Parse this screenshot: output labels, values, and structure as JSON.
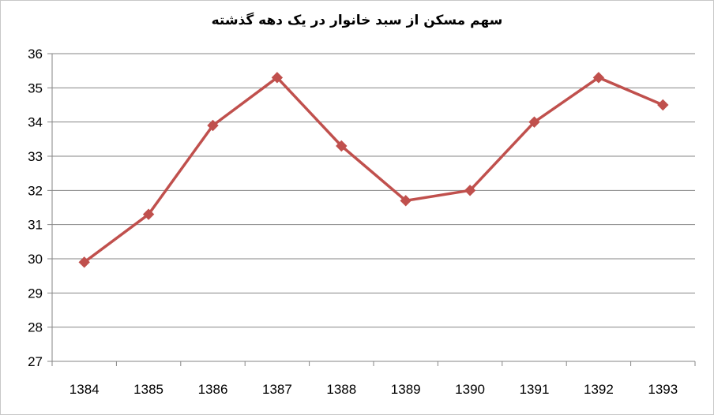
{
  "chart_data": {
    "type": "line",
    "title": "سهم مسکن از سبد خانوار در یک دهه گذشته",
    "xlabel": "",
    "ylabel": "",
    "categories": [
      "1384",
      "1385",
      "1386",
      "1387",
      "1388",
      "1389",
      "1390",
      "1391",
      "1392",
      "1393"
    ],
    "series": [
      {
        "values": [
          29.9,
          31.3,
          33.9,
          35.3,
          33.3,
          31.7,
          32.0,
          34.0,
          35.3,
          34.5
        ],
        "color": "#c0504d",
        "marker": "diamond"
      }
    ],
    "ylim": [
      27,
      36
    ],
    "yticks": [
      27,
      28,
      29,
      30,
      31,
      32,
      33,
      34,
      35,
      36
    ],
    "grid": true,
    "legend": "none"
  }
}
